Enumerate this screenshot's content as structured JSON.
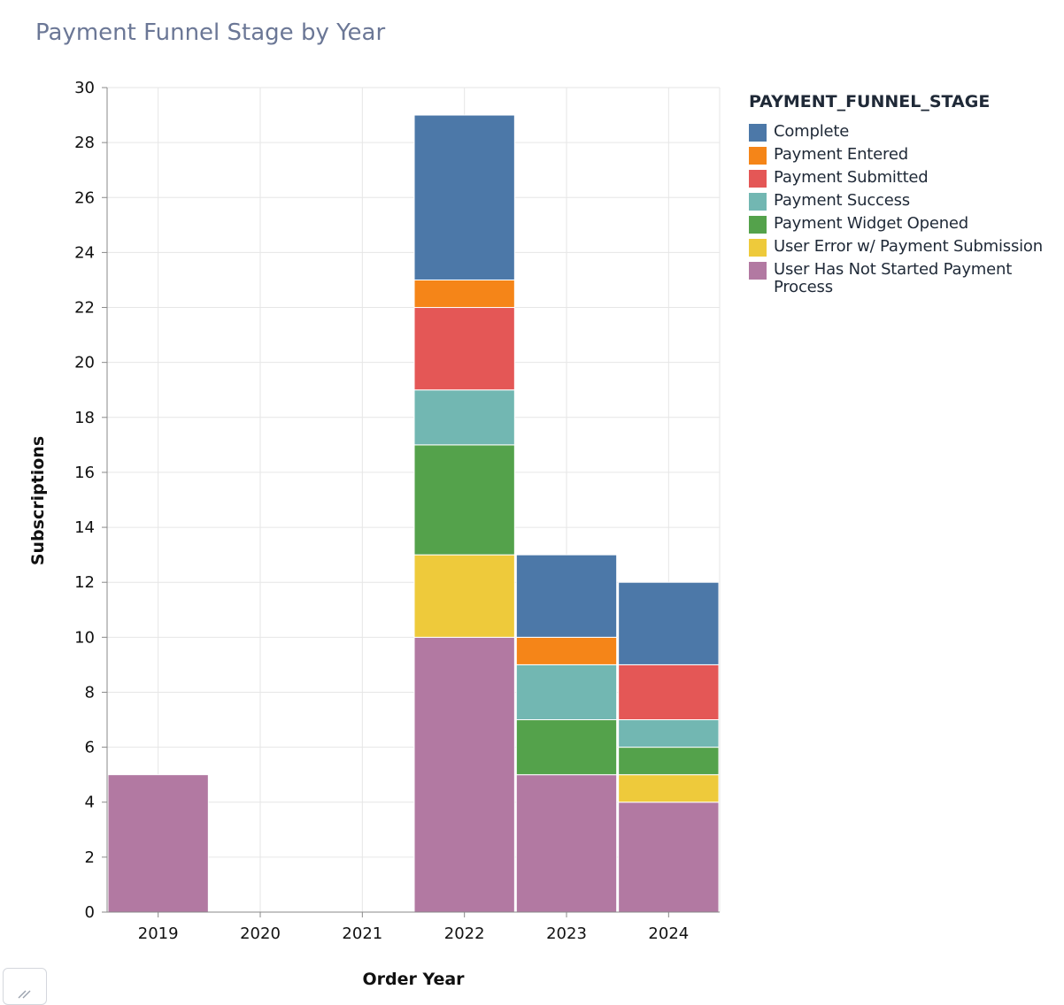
{
  "chart_data": {
    "type": "bar",
    "stacked": true,
    "title": "Payment Funnel Stage by Year",
    "xlabel": "Order Year",
    "ylabel": "Subscriptions",
    "ylim": [
      0,
      30
    ],
    "yticks": [
      0,
      2,
      4,
      6,
      8,
      10,
      12,
      14,
      16,
      18,
      20,
      22,
      24,
      26,
      28,
      30
    ],
    "categories": [
      "2019",
      "2020",
      "2021",
      "2022",
      "2023",
      "2024"
    ],
    "grid": true,
    "legend_title": "PAYMENT_FUNNEL_STAGE",
    "legend_position": "right",
    "series": [
      {
        "name": "User Has Not Started Payment Process",
        "color": "#b279a2",
        "values": [
          5,
          0,
          0,
          10,
          5,
          4
        ]
      },
      {
        "name": "User Error w/ Payment Submission",
        "color": "#eeca3b",
        "values": [
          0,
          0,
          0,
          3,
          0,
          1
        ]
      },
      {
        "name": "Payment Widget Opened",
        "color": "#54a24b",
        "values": [
          0,
          0,
          0,
          4,
          2,
          1
        ]
      },
      {
        "name": "Payment Success",
        "color": "#72b7b2",
        "values": [
          0,
          0,
          0,
          2,
          2,
          1
        ]
      },
      {
        "name": "Payment Submitted",
        "color": "#e45756",
        "values": [
          0,
          0,
          0,
          3,
          0,
          2
        ]
      },
      {
        "name": "Payment Entered",
        "color": "#f58518",
        "values": [
          0,
          0,
          0,
          1,
          1,
          0
        ]
      },
      {
        "name": "Complete",
        "color": "#4c78a8",
        "values": [
          0,
          0,
          0,
          6,
          3,
          3
        ]
      }
    ],
    "legend_order": [
      "Complete",
      "Payment Entered",
      "Payment Submitted",
      "Payment Success",
      "Payment Widget Opened",
      "User Error w/ Payment Submission",
      "User Has Not Started Payment Process"
    ]
  }
}
